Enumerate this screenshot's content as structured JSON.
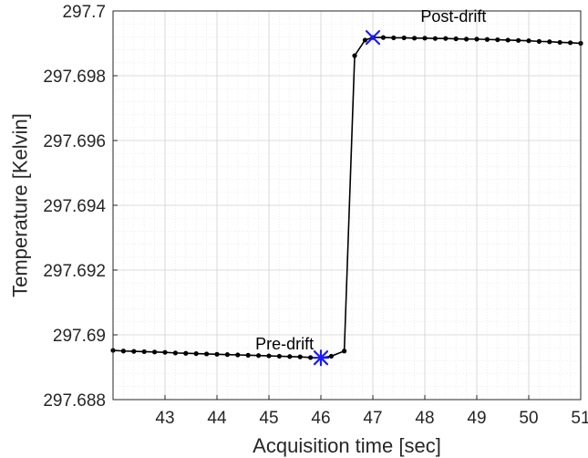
{
  "chart_data": {
    "type": "line",
    "title": "",
    "xlabel": "Acquisition time [sec]",
    "ylabel": "Temperature [Kelvin]",
    "xlim": [
      42,
      51
    ],
    "ylim": [
      297.688,
      297.7
    ],
    "grid": true,
    "minor_grid": true,
    "xticks": [
      43,
      44,
      45,
      46,
      47,
      48,
      49,
      50,
      51
    ],
    "yticks": [
      297.688,
      297.69,
      297.692,
      297.694,
      297.696,
      297.698,
      297.7
    ],
    "xtick_labels": [
      "43",
      "44",
      "45",
      "46",
      "47",
      "48",
      "49",
      "50",
      "51"
    ],
    "ytick_labels": [
      "297.688",
      "297.69",
      "297.692",
      "297.694",
      "297.696",
      "297.698",
      "297.7"
    ],
    "series": [
      {
        "color": "#000000",
        "marker": "dot",
        "x": [
          42.0,
          42.2,
          42.4,
          42.6,
          42.8,
          43.0,
          43.2,
          43.4,
          43.6,
          43.8,
          44.0,
          44.2,
          44.4,
          44.6,
          44.8,
          45.0,
          45.2,
          45.4,
          45.6,
          45.8,
          46.0,
          46.2,
          46.45,
          46.65,
          46.85,
          47.0,
          47.2,
          47.4,
          47.6,
          47.8,
          48.0,
          48.2,
          48.4,
          48.6,
          48.8,
          49.0,
          49.2,
          49.4,
          49.6,
          49.8,
          50.0,
          50.2,
          50.4,
          50.6,
          50.8,
          51.0
        ],
        "y": [
          297.68952,
          297.6895,
          297.68949,
          297.68948,
          297.68947,
          297.68946,
          297.68944,
          297.68943,
          297.68942,
          297.68941,
          297.6894,
          297.68939,
          297.68938,
          297.68937,
          297.68936,
          297.68935,
          297.68934,
          297.68933,
          297.68932,
          297.6893,
          297.68929,
          297.68934,
          297.6895,
          297.69862,
          297.6991,
          297.69918,
          297.69918,
          297.69917,
          297.69917,
          297.69916,
          297.69916,
          297.69915,
          297.69915,
          297.69914,
          297.69913,
          297.69913,
          297.69912,
          297.69911,
          297.6991,
          297.69909,
          297.69908,
          297.69906,
          297.69905,
          297.69903,
          297.69902,
          297.699
        ]
      }
    ],
    "highlight_markers": [
      {
        "x": 46.0,
        "y": 297.68929,
        "marker": "asterisk",
        "color": "#1a1aff"
      },
      {
        "x": 47.0,
        "y": 297.69918,
        "marker": "cross",
        "color": "#1a1aff"
      }
    ],
    "annotations": [
      {
        "text": "Pre-drift",
        "x": 45.3,
        "y": 297.68955
      },
      {
        "text": "Post-drift",
        "x": 48.55,
        "y": 297.69966
      }
    ]
  }
}
